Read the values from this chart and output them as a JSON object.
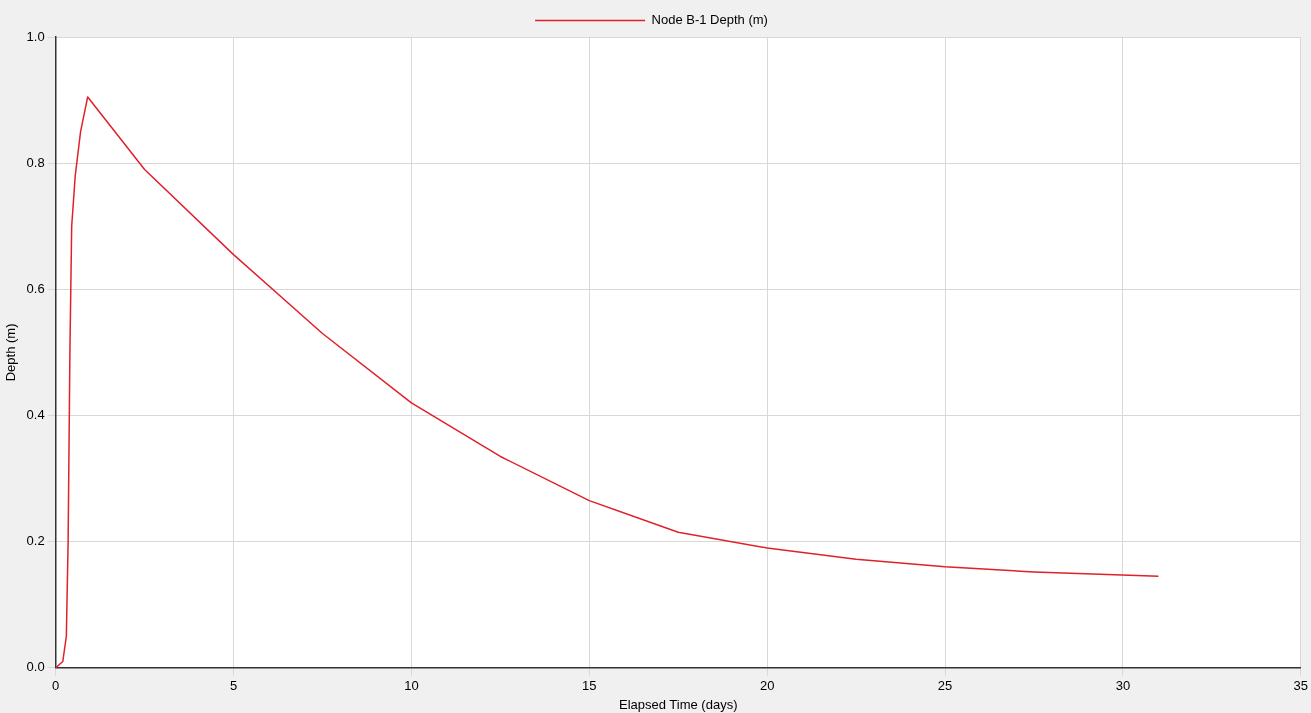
{
  "chart_data": {
    "type": "line",
    "xlabel": "Elapsed Time (days)",
    "ylabel": "Depth (m)",
    "xlim": [
      0,
      35
    ],
    "xticks": [
      0,
      5,
      10,
      15,
      20,
      25,
      30,
      35
    ],
    "ylim": [
      0,
      1
    ],
    "yticks": [
      {
        "value": 0,
        "label": "0.0"
      },
      0.2,
      0.4,
      0.6,
      0.8,
      {
        "value": 1,
        "label": "1.0"
      }
    ],
    "grid": true,
    "legend": "top",
    "marker": "none",
    "line_style": "solid",
    "series": [
      {
        "name": "Node B-1 Depth (m)",
        "color": "#e0202a",
        "x": [
          0,
          0.2,
          0.3,
          0.35,
          0.4,
          0.45,
          0.55,
          0.7,
          0.9,
          2.5,
          5,
          7.5,
          10,
          12.5,
          15,
          17.5,
          20,
          22.5,
          25,
          27.5,
          31
        ],
        "values": [
          0,
          0.01,
          0.05,
          0.2,
          0.5,
          0.7,
          0.78,
          0.85,
          0.905,
          0.79,
          0.655,
          0.53,
          0.42,
          0.335,
          0.265,
          0.215,
          0.19,
          0.172,
          0.16,
          0.152,
          0.145
        ]
      }
    ]
  }
}
